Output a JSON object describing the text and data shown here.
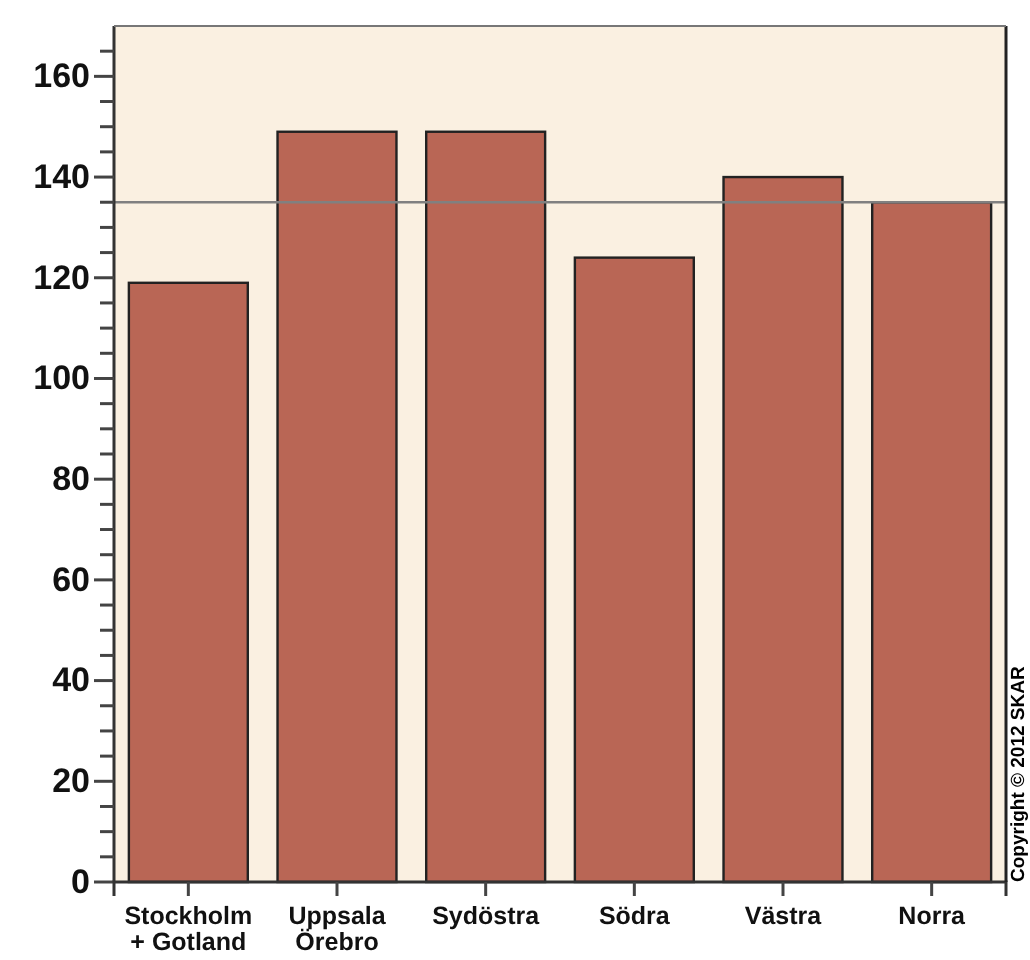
{
  "chart_data": {
    "type": "bar",
    "categories": [
      "Stockholm\n+ Gotland",
      "Uppsala\nÖrebro",
      "Sydöstra",
      "Södra",
      "Västra",
      "Norra"
    ],
    "values": [
      119,
      149,
      149,
      124,
      140,
      135
    ],
    "color": "#b96655",
    "ylim": [
      0,
      170
    ],
    "yticks": [
      0,
      {
        "value": 5,
        "label": null
      },
      {
        "value": 10,
        "label": null
      },
      {
        "value": 15,
        "label": null
      },
      20,
      {
        "value": 25,
        "label": null
      },
      {
        "value": 30,
        "label": null
      },
      {
        "value": 35,
        "label": null
      },
      40,
      {
        "value": 45,
        "label": null
      },
      {
        "value": 50,
        "label": null
      },
      {
        "value": 55,
        "label": null
      },
      60,
      {
        "value": 65,
        "label": null
      },
      {
        "value": 70,
        "label": null
      },
      {
        "value": 75,
        "label": null
      },
      80,
      {
        "value": 85,
        "label": null
      },
      {
        "value": 90,
        "label": null
      },
      {
        "value": 95,
        "label": null
      },
      100,
      {
        "value": 105,
        "label": null
      },
      {
        "value": 110,
        "label": null
      },
      {
        "value": 115,
        "label": null
      },
      120,
      {
        "value": 125,
        "label": null
      },
      {
        "value": 130,
        "label": null
      },
      {
        "value": 135,
        "label": null
      },
      140,
      {
        "value": 145,
        "label": null
      },
      {
        "value": 150,
        "label": null
      },
      {
        "value": 155,
        "label": null
      },
      160,
      {
        "value": 165,
        "label": null
      }
    ],
    "ref_lines": [
      {
        "axis": "y",
        "value": 135,
        "color": "#808080"
      }
    ],
    "annotations": [
      "Copyright © 2012 SKAR"
    ],
    "grid": false
  }
}
